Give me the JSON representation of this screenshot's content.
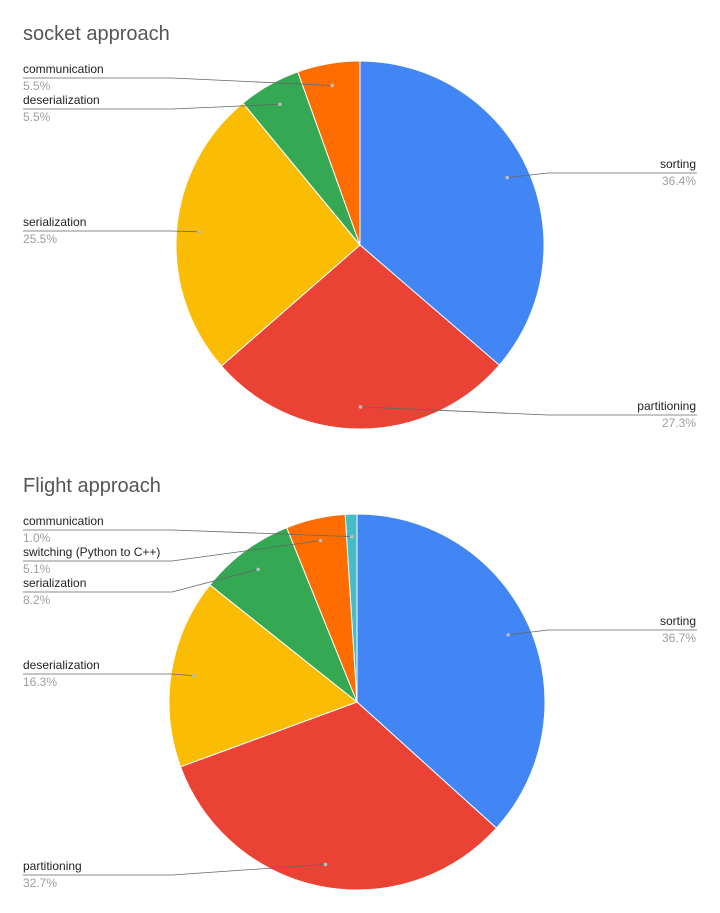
{
  "chart_data": [
    {
      "type": "pie",
      "title": "socket approach",
      "slices": [
        {
          "label": "sorting",
          "value": 36.4,
          "value_label": "36.4%",
          "color": "#4285F4"
        },
        {
          "label": "partitioning",
          "value": 27.3,
          "value_label": "27.3%",
          "color": "#EA4335"
        },
        {
          "label": "serialization",
          "value": 25.5,
          "value_label": "25.5%",
          "color": "#FBBC04"
        },
        {
          "label": "deserialization",
          "value": 5.5,
          "value_label": "5.5%",
          "color": "#34A853"
        },
        {
          "label": "communication",
          "value": 5.5,
          "value_label": "5.5%",
          "color": "#FF6D01"
        }
      ],
      "start_angle_deg": 0,
      "direction": "clockwise",
      "legend": "none",
      "label_style": "callout-lines"
    },
    {
      "type": "pie",
      "title": "Flight approach",
      "slices": [
        {
          "label": "sorting",
          "value": 36.7,
          "value_label": "36.7%",
          "color": "#4285F4"
        },
        {
          "label": "partitioning",
          "value": 32.7,
          "value_label": "32.7%",
          "color": "#EA4335"
        },
        {
          "label": "deserialization",
          "value": 16.3,
          "value_label": "16.3%",
          "color": "#FBBC04"
        },
        {
          "label": "serialization",
          "value": 8.2,
          "value_label": "8.2%",
          "color": "#34A853"
        },
        {
          "label": "switching (Python to C++)",
          "value": 5.1,
          "value_label": "5.1%",
          "color": "#FF6D01"
        },
        {
          "label": "communication",
          "value": 1.0,
          "value_label": "1.0%",
          "color": "#46BDC6"
        }
      ],
      "start_angle_deg": 0,
      "direction": "clockwise",
      "legend": "none",
      "label_style": "callout-lines"
    }
  ]
}
